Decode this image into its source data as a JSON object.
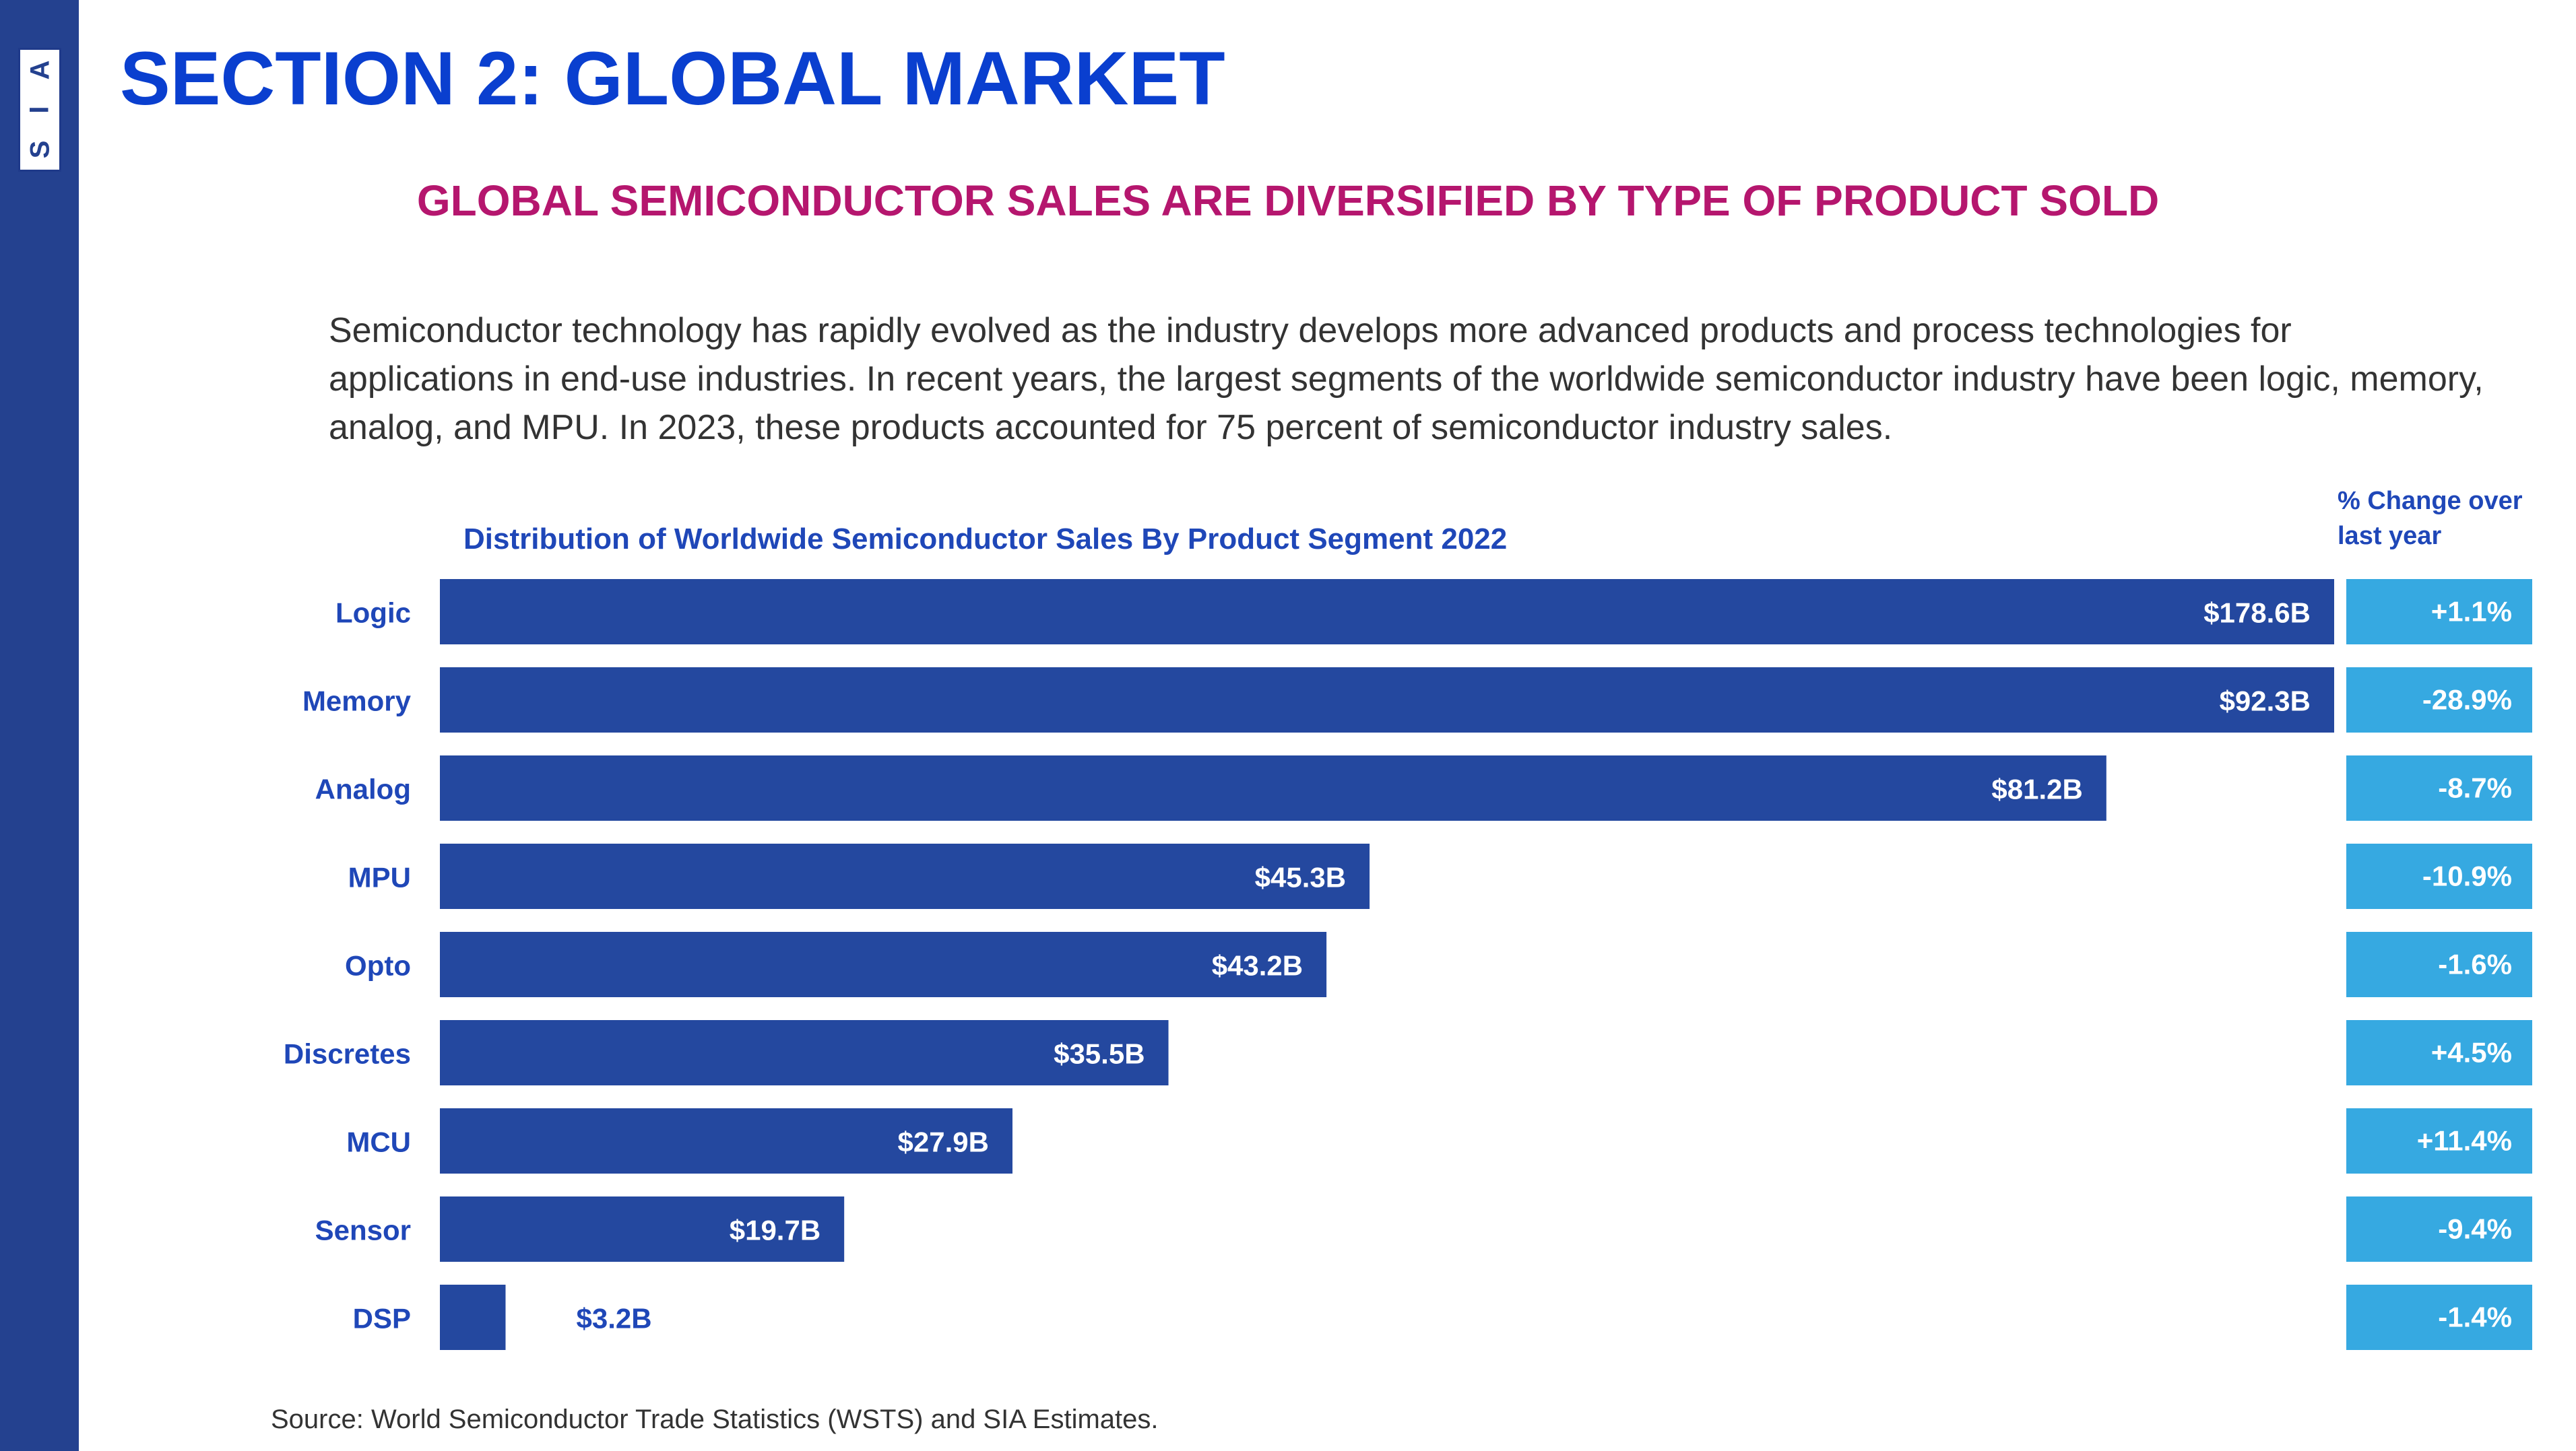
{
  "logo": {
    "letters": [
      "A",
      "I",
      "S"
    ]
  },
  "header": {
    "title": "SECTION 2: GLOBAL MARKET",
    "subtitle": "GLOBAL SEMICONDUCTOR SALES ARE DIVERSIFIED BY TYPE OF PRODUCT SOLD"
  },
  "intro": "Semiconductor technology has rapidly evolved as the industry develops more advanced products and process technologies for applications in end-use industries. In recent years, the largest segments of the worldwide semiconductor industry have been logic, memory, analog, and MPU. In 2023, these products accounted for 75 percent of semiconductor industry sales.",
  "chart_data": {
    "type": "bar",
    "orientation": "horizontal",
    "title": "Distribution of Worldwide Semiconductor Sales By Product Segment 2022",
    "change_header": "% Change over last year",
    "categories": [
      "Logic",
      "Memory",
      "Analog",
      "MPU",
      "Opto",
      "Discretes",
      "MCU",
      "Sensor",
      "DSP"
    ],
    "values": [
      178.6,
      92.3,
      81.2,
      45.3,
      43.2,
      35.5,
      27.9,
      19.7,
      3.2
    ],
    "value_labels": [
      "$178.6B",
      "$92.3B",
      "$81.2B",
      "$45.3B",
      "$43.2B",
      "$35.5B",
      "$27.9B",
      "$19.7B",
      "$3.2B"
    ],
    "changes": [
      "+1.1%",
      "-28.9%",
      "-8.7%",
      "-10.9%",
      "-1.6%",
      "+4.5%",
      "+11.4%",
      "-9.4%",
      "-1.4%"
    ],
    "unit": "$B",
    "colors": {
      "bar": "#24489f",
      "change_box": "#36a9e1",
      "label": "#1f47b8"
    }
  },
  "source": "Source: World Semiconductor Trade Statistics (WSTS) and SIA Estimates."
}
